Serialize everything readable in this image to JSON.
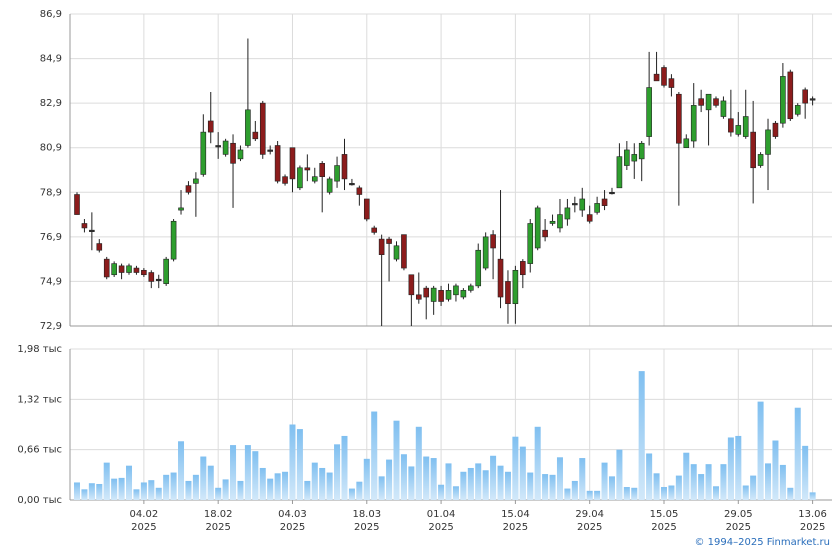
{
  "chart_data": [
    {
      "type": "candlestick",
      "up_color": "#2e9e2e",
      "down_color": "#8c1c1c",
      "flat_color": "#333333",
      "ylim": [
        72.9,
        86.9
      ],
      "yticks": [
        {
          "value": 72.9,
          "label": "72,9"
        },
        {
          "value": 74.9,
          "label": "74,9"
        },
        {
          "value": 76.9,
          "label": "76,9"
        },
        {
          "value": 78.9,
          "label": "78,9"
        },
        {
          "value": 80.9,
          "label": "80,9"
        },
        {
          "value": 82.9,
          "label": "82,9"
        },
        {
          "value": 84.9,
          "label": "84,9"
        },
        {
          "value": 86.9,
          "label": "86,9"
        }
      ],
      "grid": true,
      "open": [
        78.8,
        77.5,
        77.2,
        76.6,
        75.9,
        75.2,
        75.6,
        75.3,
        75.5,
        75.4,
        75.3,
        75.0,
        74.8,
        75.9,
        78.1,
        79.2,
        79.3,
        79.7,
        82.1,
        81.0,
        80.6,
        81.1,
        80.4,
        81.0,
        81.6,
        82.9,
        80.8,
        81.0,
        79.6,
        80.9,
        79.1,
        80.0,
        79.4,
        80.2,
        78.9,
        79.4,
        80.6,
        79.3,
        79.1,
        78.6,
        77.3,
        76.8,
        76.8,
        75.9,
        77.0,
        75.2,
        74.3,
        74.6,
        74.0,
        74.5,
        74.1,
        74.3,
        74.2,
        74.5,
        74.7,
        75.5,
        77.0,
        75.9,
        74.9,
        73.9,
        75.8,
        75.7,
        76.4,
        77.2,
        77.5,
        77.3,
        77.7,
        78.4,
        78.1,
        77.9,
        78.0,
        78.6,
        78.9,
        79.1,
        80.1,
        80.3,
        80.4,
        81.4,
        84.2,
        84.5,
        84.0,
        83.3,
        80.9,
        81.2,
        83.1,
        82.6,
        83.1,
        82.3,
        82.2,
        81.5,
        81.4,
        81.6,
        80.1,
        80.6,
        82.0,
        82.0,
        84.3,
        82.4,
        83.5,
        83.1
      ],
      "high": [
        78.9,
        77.7,
        78.0,
        76.8,
        76.0,
        75.8,
        75.7,
        75.7,
        75.6,
        75.5,
        75.4,
        75.2,
        76.0,
        77.7,
        79.0,
        79.4,
        79.8,
        82.4,
        83.4,
        81.6,
        81.3,
        81.5,
        81.0,
        85.8,
        82.1,
        83.0,
        81.0,
        81.2,
        79.7,
        80.9,
        80.1,
        80.6,
        80.0,
        80.3,
        79.6,
        80.5,
        81.3,
        79.5,
        79.2,
        78.6,
        77.4,
        77.0,
        76.9,
        76.7,
        77.0,
        75.2,
        75.3,
        74.7,
        74.7,
        74.7,
        74.8,
        74.8,
        74.6,
        74.8,
        76.6,
        77.1,
        77.2,
        79.0,
        75.4,
        75.6,
        75.9,
        77.7,
        78.3,
        77.7,
        77.9,
        78.6,
        78.6,
        78.7,
        79.1,
        78.3,
        78.7,
        79.0,
        79.1,
        81.1,
        81.2,
        81.1,
        81.2,
        85.2,
        85.2,
        84.6,
        84.2,
        83.4,
        81.5,
        83.8,
        83.5,
        83.3,
        83.2,
        83.2,
        83.5,
        82.5,
        83.5,
        83.0,
        80.7,
        82.2,
        82.1,
        84.7,
        84.4,
        82.9,
        83.6,
        83.2
      ],
      "low": [
        77.9,
        77.1,
        76.3,
        76.2,
        75.0,
        75.1,
        75.0,
        75.2,
        75.2,
        75.1,
        74.6,
        74.6,
        74.7,
        75.8,
        77.9,
        78.8,
        77.8,
        79.6,
        81.1,
        80.4,
        80.5,
        78.2,
        80.3,
        80.9,
        81.2,
        80.4,
        80.6,
        79.3,
        79.2,
        78.9,
        79.0,
        79.4,
        79.3,
        78.0,
        78.8,
        79.1,
        79.0,
        79.2,
        78.3,
        77.6,
        77.0,
        72.9,
        74.9,
        75.8,
        75.4,
        72.9,
        73.9,
        73.2,
        73.4,
        73.8,
        74.0,
        74.0,
        74.1,
        74.4,
        74.6,
        75.4,
        75.0,
        73.7,
        73.0,
        73.0,
        74.6,
        75.3,
        76.3,
        76.7,
        77.4,
        77.1,
        77.4,
        78.0,
        77.8,
        77.5,
        77.9,
        78.1,
        78.8,
        79.1,
        79.9,
        79.5,
        79.4,
        81.0,
        83.9,
        83.6,
        83.2,
        78.3,
        80.9,
        80.9,
        82.5,
        81.0,
        82.7,
        82.2,
        81.4,
        81.4,
        81.3,
        78.4,
        80.0,
        79.0,
        81.3,
        81.8,
        82.1,
        82.3,
        82.2,
        82.8
      ],
      "close": [
        77.9,
        77.3,
        77.2,
        76.3,
        75.1,
        75.7,
        75.3,
        75.6,
        75.3,
        75.2,
        74.9,
        75.0,
        75.9,
        77.6,
        78.2,
        78.9,
        79.5,
        81.6,
        81.6,
        81.0,
        81.2,
        80.2,
        80.8,
        82.6,
        81.3,
        80.6,
        80.8,
        79.4,
        79.3,
        79.5,
        80.0,
        79.9,
        79.6,
        79.6,
        79.5,
        80.1,
        79.5,
        79.3,
        78.8,
        77.7,
        77.1,
        76.1,
        76.6,
        76.5,
        75.5,
        74.3,
        74.1,
        74.2,
        74.6,
        74.0,
        74.5,
        74.7,
        74.5,
        74.7,
        76.3,
        76.9,
        76.4,
        74.2,
        73.9,
        75.4,
        75.2,
        77.5,
        78.2,
        76.9,
        77.6,
        77.9,
        78.2,
        78.4,
        78.6,
        77.6,
        78.4,
        78.3,
        78.9,
        80.5,
        80.8,
        80.6,
        81.1,
        83.6,
        83.9,
        83.7,
        83.6,
        81.1,
        81.3,
        82.8,
        82.8,
        83.3,
        82.8,
        83.0,
        81.6,
        81.9,
        82.3,
        80.0,
        80.6,
        81.7,
        81.4,
        84.1,
        82.2,
        82.8,
        82.9,
        83.1
      ]
    },
    {
      "type": "bar",
      "color": "#7fbff0",
      "categories": [
        null,
        null,
        null,
        null,
        null,
        null,
        null,
        null,
        null,
        "04.02 2025",
        null,
        null,
        null,
        null,
        null,
        null,
        null,
        null,
        null,
        "18.02 2025",
        null,
        null,
        null,
        null,
        null,
        null,
        null,
        null,
        null,
        "04.03 2025",
        null,
        null,
        null,
        null,
        null,
        null,
        null,
        null,
        null,
        "18.03 2025",
        null,
        null,
        null,
        null,
        null,
        null,
        null,
        null,
        null,
        "01.04 2025",
        null,
        null,
        null,
        null,
        null,
        null,
        null,
        null,
        null,
        "15.04 2025",
        null,
        null,
        null,
        null,
        null,
        null,
        null,
        null,
        null,
        "29.04 2025",
        null,
        null,
        null,
        null,
        null,
        null,
        null,
        null,
        null,
        "15.05 2025",
        null,
        null,
        null,
        null,
        null,
        null,
        null,
        null,
        null,
        "29.05 2025",
        null,
        null,
        null,
        null,
        null,
        null,
        null,
        null,
        null,
        "13.06 2025"
      ],
      "values": [
        0.23,
        0.14,
        0.22,
        0.21,
        0.49,
        0.28,
        0.29,
        0.45,
        0.14,
        0.23,
        0.26,
        0.16,
        0.33,
        0.36,
        0.77,
        0.25,
        0.33,
        0.57,
        0.45,
        0.16,
        0.27,
        0.72,
        0.25,
        0.72,
        0.64,
        0.42,
        0.28,
        0.35,
        0.37,
        0.99,
        0.93,
        0.25,
        0.49,
        0.42,
        0.36,
        0.73,
        0.84,
        0.15,
        0.24,
        0.54,
        1.16,
        0.31,
        0.53,
        1.04,
        0.6,
        0.44,
        0.96,
        0.57,
        0.55,
        0.2,
        0.48,
        0.18,
        0.37,
        0.42,
        0.48,
        0.39,
        0.58,
        0.45,
        0.37,
        0.83,
        0.7,
        0.36,
        0.96,
        0.34,
        0.33,
        0.56,
        0.15,
        0.25,
        0.55,
        0.12,
        0.12,
        0.49,
        0.31,
        0.66,
        0.17,
        0.16,
        1.69,
        0.61,
        0.35,
        0.17,
        0.19,
        0.32,
        0.62,
        0.47,
        0.34,
        0.47,
        0.18,
        0.47,
        0.82,
        0.84,
        0.19,
        0.32,
        1.29,
        0.48,
        0.78,
        0.46,
        0.16,
        1.21,
        0.71,
        0.1
      ],
      "ylim": [
        0,
        1.98
      ],
      "yticks": [
        {
          "value": 0,
          "label": "0,00 тыс"
        },
        {
          "value": 0.66,
          "label": "0,66 тыс"
        },
        {
          "value": 1.32,
          "label": "1,32 тыс"
        },
        {
          "value": 1.98,
          "label": "1,98 тыс"
        }
      ],
      "grid": true
    }
  ],
  "footer": "© 1994–2025 Finmarket.ru"
}
